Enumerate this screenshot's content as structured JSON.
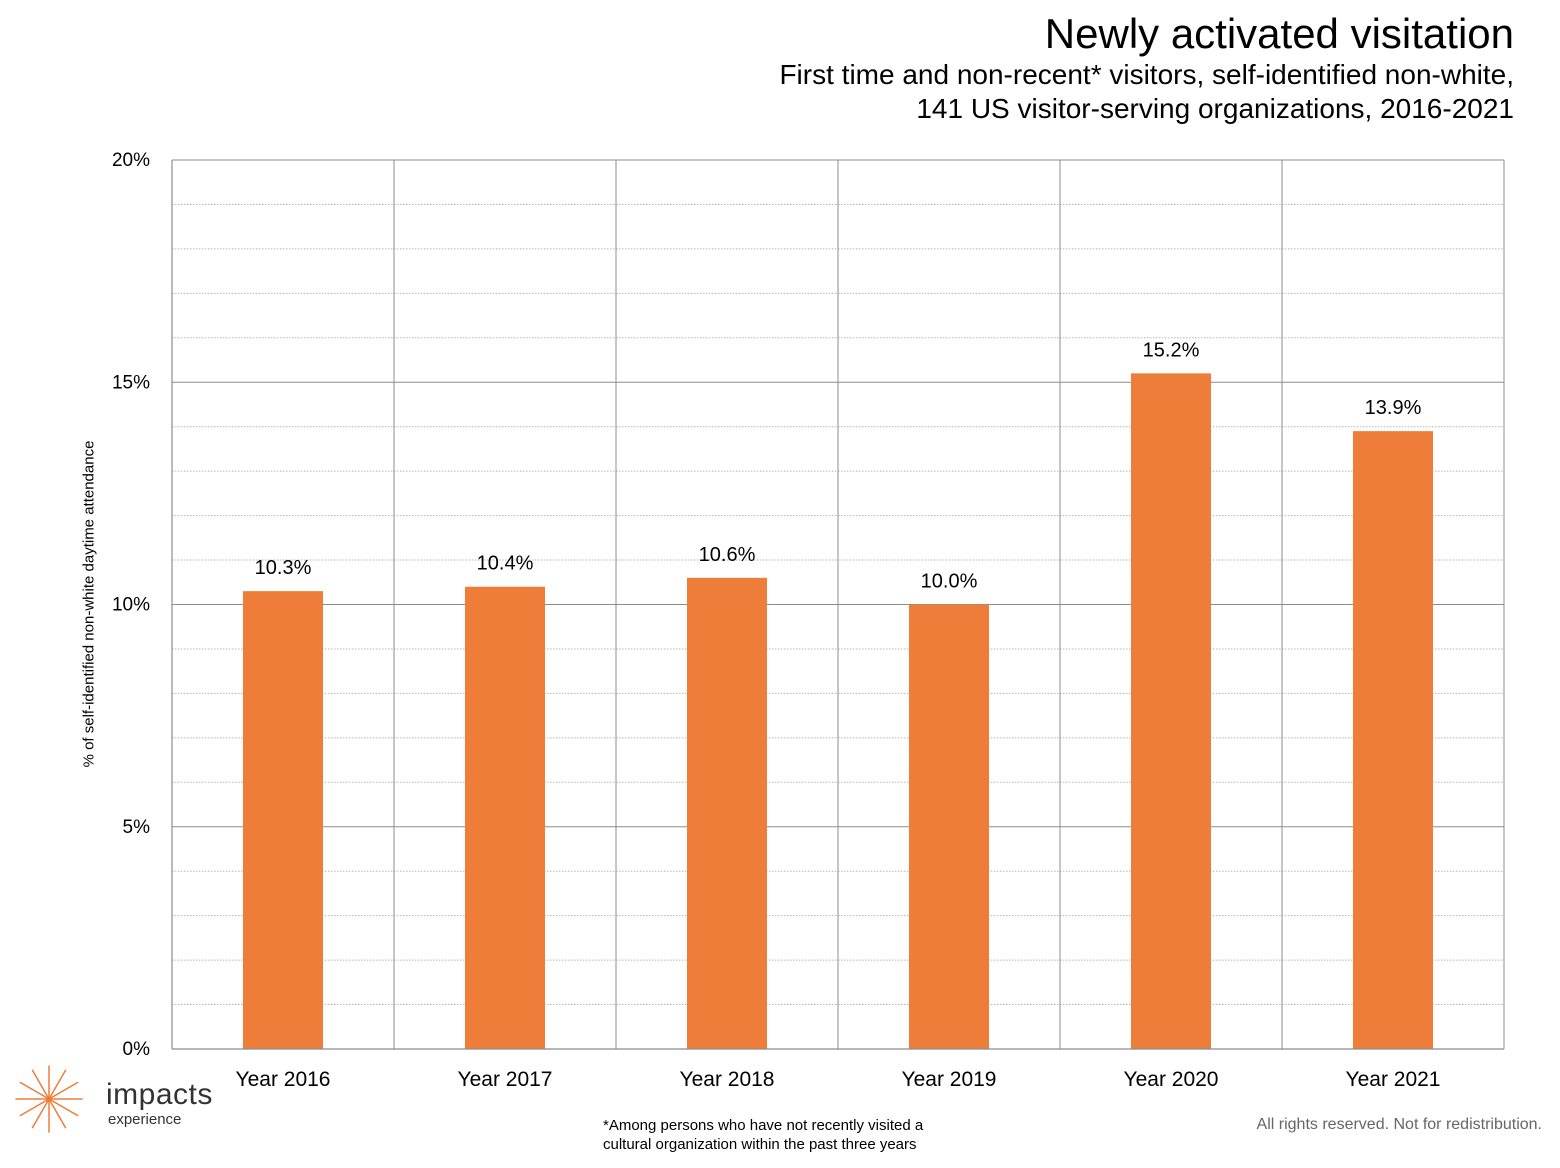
{
  "header": {
    "title": "Newly activated visitation",
    "subtitle_lines": [
      "First time and non-recent* visitors, self-identified non-white,",
      "141 US visitor-serving organizations, 2016-2021"
    ]
  },
  "chart_data": {
    "type": "bar",
    "title": "Newly activated visitation",
    "subtitle": "First time and non-recent* visitors, self-identified non-white, 141 US visitor-serving organizations, 2016-2021",
    "xlabel": "",
    "ylabel": "% of self-identified non-white daytime attendance",
    "categories": [
      "Year 2016",
      "Year 2017",
      "Year 2018",
      "Year 2019",
      "Year 2020",
      "Year 2021"
    ],
    "values": [
      10.3,
      10.4,
      10.6,
      10.0,
      15.2,
      13.9
    ],
    "data_labels": [
      "10.3%",
      "10.4%",
      "10.6%",
      "10.0%",
      "15.2%",
      "13.9%"
    ],
    "ylim": [
      0,
      20
    ],
    "y_ticks": [
      0,
      5,
      10,
      15,
      20
    ],
    "y_tick_labels": [
      "0%",
      "5%",
      "10%",
      "15%",
      "20%"
    ],
    "grid": true,
    "bar_color": "#ED7D38"
  },
  "footer": {
    "logo_name": "impacts",
    "logo_sub": "experience",
    "logo_color": "#ED7D38",
    "footnote_lines": [
      "*Among persons who have not recently visited a",
      "cultural organization within the past three years"
    ],
    "rights": "All rights reserved. Not for redistribution."
  }
}
